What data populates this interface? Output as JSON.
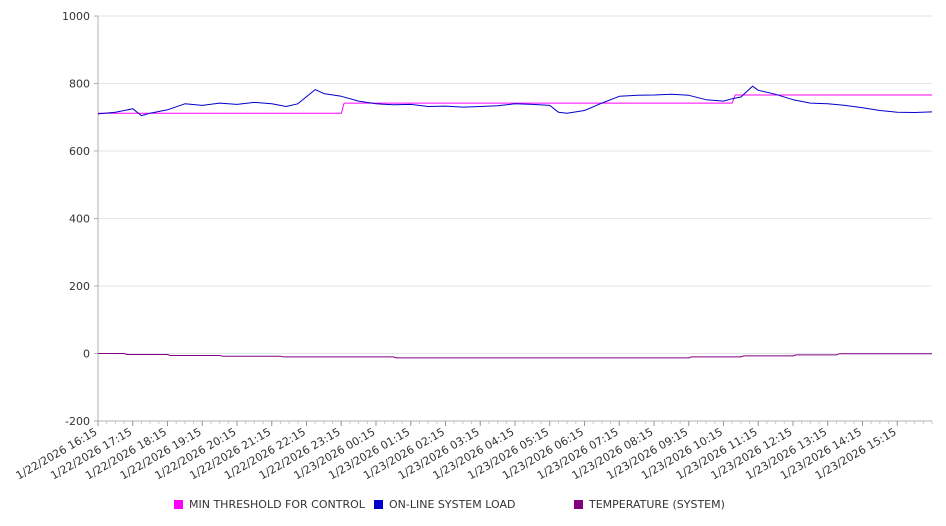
{
  "chart_data": {
    "type": "line",
    "y_ticks": [
      1000,
      800,
      600,
      400,
      200,
      0,
      -200
    ],
    "ylim": [
      -200,
      1000
    ],
    "grid": "horizontal",
    "legend_position": "bottom",
    "x_tick_labels": [
      "1/22/2026 16:15",
      "1/22/2026 17:15",
      "1/22/2026 18:15",
      "1/22/2026 19:15",
      "1/22/2026 20:15",
      "1/22/2026 21:15",
      "1/22/2026 22:15",
      "1/22/2026 23:15",
      "1/23/2026 00:15",
      "1/23/2026 01:15",
      "1/23/2026 02:15",
      "1/23/2026 03:15",
      "1/23/2026 04:15",
      "1/23/2026 05:15",
      "1/23/2026 06:15",
      "1/23/2026 07:15",
      "1/23/2026 08:15",
      "1/23/2026 09:15",
      "1/23/2026 10:15",
      "1/23/2026 11:15",
      "1/23/2026 12:15",
      "1/23/2026 13:15",
      "1/23/2026 14:15",
      "1/23/2026 15:15"
    ],
    "series": [
      {
        "name": "MIN THRESHOLD FOR CONTROL",
        "color": "#ff00ff",
        "x": [
          "1/22/2026 16:15",
          "1/22/2026 23:15",
          "1/22/2026 23:20",
          "1/23/2026 10:30",
          "1/23/2026 10:35",
          "1/23/2026 16:15"
        ],
        "values": [
          712,
          712,
          742,
          742,
          766,
          766
        ]
      },
      {
        "name": "ON-LINE SYSTEM LOAD",
        "color": "#0000cc",
        "x": [
          "1/22/2026 16:15",
          "1/22/2026 16:45",
          "1/22/2026 17:15",
          "1/22/2026 17:30",
          "1/22/2026 17:45",
          "1/22/2026 18:15",
          "1/22/2026 18:45",
          "1/22/2026 19:15",
          "1/22/2026 19:45",
          "1/22/2026 20:15",
          "1/22/2026 20:45",
          "1/22/2026 21:15",
          "1/22/2026 21:40",
          "1/22/2026 22:00",
          "1/22/2026 22:30",
          "1/22/2026 22:45",
          "1/22/2026 23:15",
          "1/22/2026 23:45",
          "1/23/2026 00:15",
          "1/23/2026 00:45",
          "1/23/2026 01:15",
          "1/23/2026 01:45",
          "1/23/2026 02:15",
          "1/23/2026 02:45",
          "1/23/2026 03:15",
          "1/23/2026 03:45",
          "1/23/2026 04:15",
          "1/23/2026 04:45",
          "1/23/2026 05:15",
          "1/23/2026 05:30",
          "1/23/2026 05:45",
          "1/23/2026 06:15",
          "1/23/2026 06:45",
          "1/23/2026 07:15",
          "1/23/2026 07:45",
          "1/23/2026 08:15",
          "1/23/2026 08:45",
          "1/23/2026 09:15",
          "1/23/2026 09:45",
          "1/23/2026 10:15",
          "1/23/2026 10:30",
          "1/23/2026 10:45",
          "1/23/2026 11:05",
          "1/23/2026 11:15",
          "1/23/2026 11:45",
          "1/23/2026 12:15",
          "1/23/2026 12:45",
          "1/23/2026 13:15",
          "1/23/2026 13:45",
          "1/23/2026 14:15",
          "1/23/2026 14:45",
          "1/23/2026 15:15",
          "1/23/2026 15:45",
          "1/23/2026 16:15"
        ],
        "values": [
          710,
          715,
          725,
          705,
          712,
          722,
          740,
          735,
          742,
          738,
          744,
          740,
          732,
          740,
          782,
          770,
          762,
          748,
          740,
          737,
          738,
          732,
          733,
          730,
          732,
          734,
          740,
          738,
          735,
          715,
          712,
          720,
          742,
          762,
          765,
          766,
          768,
          765,
          752,
          748,
          755,
          760,
          792,
          780,
          768,
          752,
          742,
          740,
          735,
          728,
          720,
          715,
          714,
          716
        ]
      },
      {
        "name": "TEMPERATURE (SYSTEM)",
        "color": "#800080",
        "x": [
          "1/22/2026 16:15",
          "1/22/2026 17:00",
          "1/22/2026 17:05",
          "1/22/2026 18:15",
          "1/22/2026 18:20",
          "1/22/2026 19:45",
          "1/22/2026 19:50",
          "1/22/2026 21:30",
          "1/22/2026 21:35",
          "1/23/2026 00:45",
          "1/23/2026 00:50",
          "1/23/2026 09:15",
          "1/23/2026 09:20",
          "1/23/2026 10:45",
          "1/23/2026 10:50",
          "1/23/2026 12:15",
          "1/23/2026 12:20",
          "1/23/2026 13:30",
          "1/23/2026 13:35",
          "1/23/2026 16:15"
        ],
        "values": [
          0,
          0,
          -3,
          -3,
          -6,
          -6,
          -8,
          -8,
          -10,
          -10,
          -13,
          -13,
          -10,
          -10,
          -7,
          -7,
          -4,
          -4,
          -1,
          -1
        ]
      }
    ]
  }
}
